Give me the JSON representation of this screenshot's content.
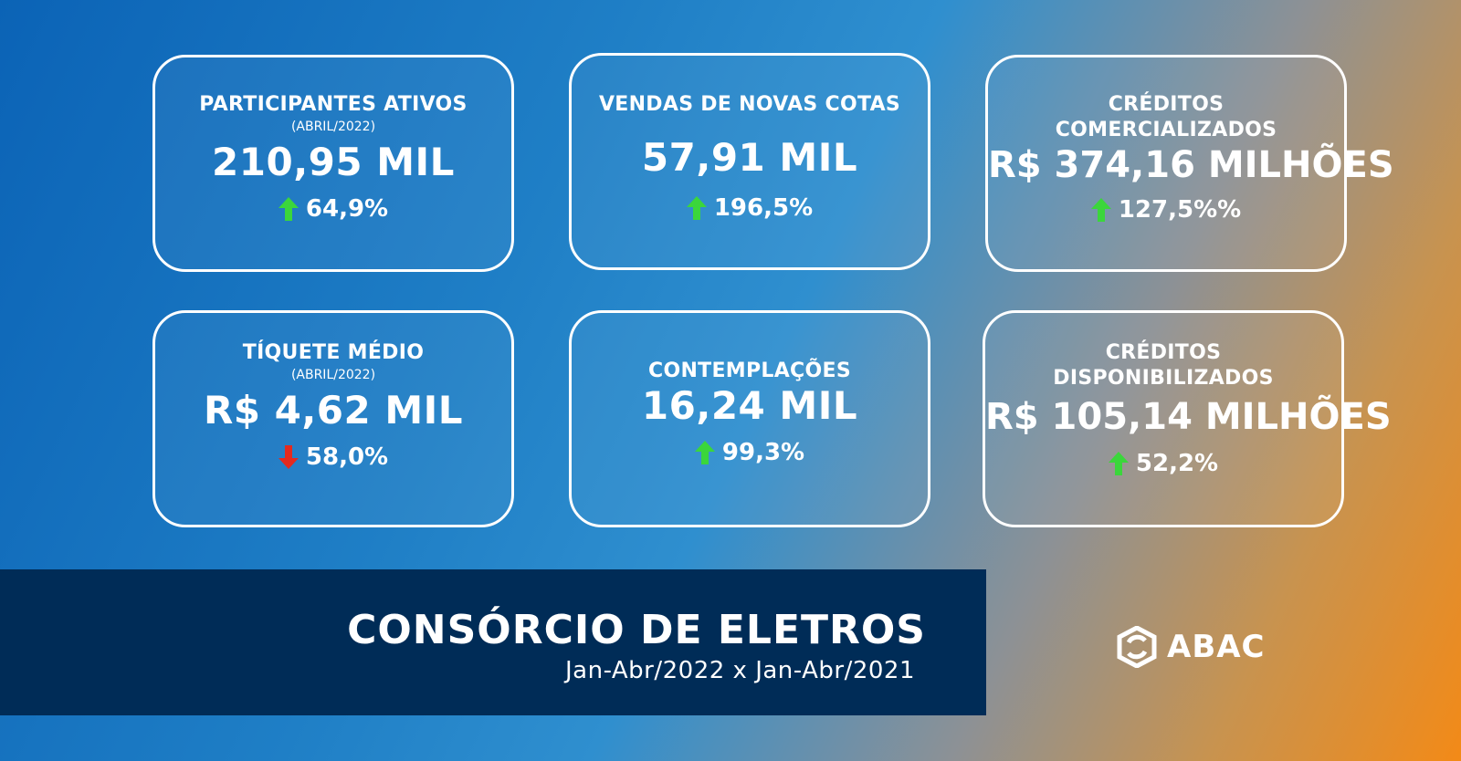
{
  "cards": [
    {
      "label": "PARTICIPANTES ATIVOS",
      "sub": "(ABRIL/2022)",
      "value": "210,95 MIL",
      "change": "64,9%",
      "direction": "up"
    },
    {
      "label": "VENDAS DE NOVAS COTAS",
      "value": "57,91 MIL",
      "change": "196,5%",
      "direction": "up"
    },
    {
      "label_line1": "CRÉDITOS",
      "label_line2": "COMERCIALIZADOS",
      "value": "R$ 374,16 MILHÕES",
      "change": "127,5%%",
      "direction": "up"
    },
    {
      "label": "TÍQUETE MÉDIO",
      "sub": "(ABRIL/2022)",
      "value": "R$ 4,62 MIL",
      "change": "58,0%",
      "direction": "down"
    },
    {
      "label": "CONTEMPLAÇÕES",
      "value": "16,24 MIL",
      "change": "99,3%",
      "direction": "up"
    },
    {
      "label_line1": "CRÉDITOS",
      "label_line2": "DISPONIBILIZADOS",
      "value": "R$ 105,14 MILHÕES",
      "change": "52,2%",
      "direction": "up"
    }
  ],
  "banner": {
    "title": "CONSÓRCIO DE ELETROS",
    "subtitle": "Jan-Abr/2022 x Jan-Abr/2021"
  },
  "logo": {
    "text": "ABAC"
  },
  "colors": {
    "up": "#3bd63b",
    "down": "#e42a1f",
    "banner": "#002c57"
  }
}
